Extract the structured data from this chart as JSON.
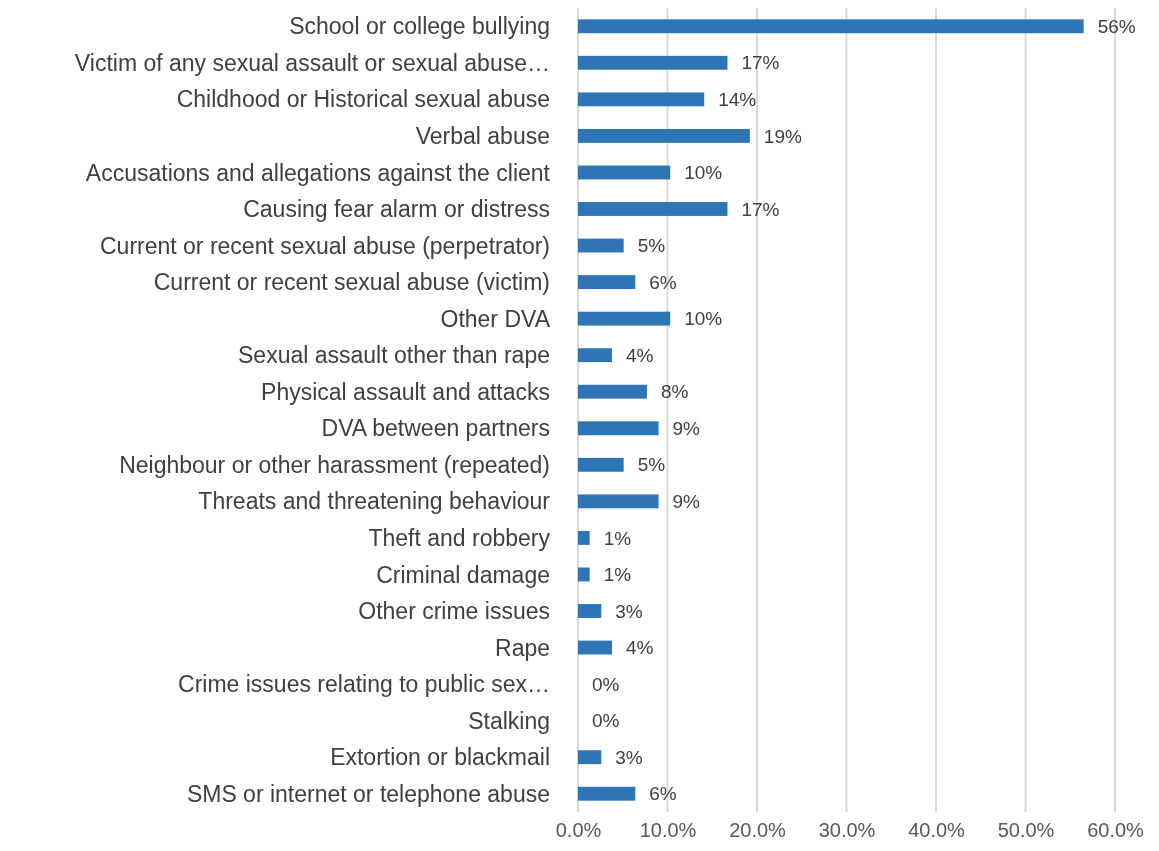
{
  "chart_data": {
    "type": "bar",
    "orientation": "horizontal",
    "categories": [
      "School or college bullying",
      "Victim of any sexual assault or sexual abuse…",
      "Childhood or Historical sexual abuse",
      "Verbal abuse",
      "Accusations and allegations against the client",
      "Causing fear alarm or distress",
      "Current or recent sexual abuse (perpetrator)",
      "Current or recent sexual abuse (victim)",
      "Other DVA",
      "Sexual assault other than rape",
      "Physical assault and attacks",
      "DVA between partners",
      "Neighbour or other harassment (repeated)",
      "Threats and threatening behaviour",
      "Theft and robbery",
      "Criminal damage",
      "Other crime issues",
      "Rape",
      "Crime issues relating to public sex…",
      "Stalking",
      "Extortion or blackmail",
      "SMS or internet or telephone abuse"
    ],
    "values": [
      56.5,
      16.7,
      14.1,
      19.2,
      10.3,
      16.7,
      5.1,
      6.4,
      10.3,
      3.8,
      7.7,
      9.0,
      5.1,
      9.0,
      1.3,
      1.3,
      2.6,
      3.8,
      0,
      0,
      2.6,
      6.4
    ],
    "value_labels": [
      "56%",
      "17%",
      "14%",
      "19%",
      "10%",
      "17%",
      "5%",
      "6%",
      "10%",
      "4%",
      "8%",
      "9%",
      "5%",
      "9%",
      "1%",
      "1%",
      "3%",
      "4%",
      "0%",
      "0%",
      "3%",
      "6%"
    ],
    "color": "#2e75b6",
    "xlim": [
      0,
      60
    ],
    "xticks": [
      {
        "value": 0,
        "label": "0.0%"
      },
      {
        "value": 10,
        "label": "10.0%"
      },
      {
        "value": 20,
        "label": "20.0%"
      },
      {
        "value": 30,
        "label": "30.0%"
      },
      {
        "value": 40,
        "label": "40.0%"
      },
      {
        "value": 50,
        "label": "50.0%"
      },
      {
        "value": 60,
        "label": "60.0%"
      }
    ],
    "grid": "x"
  }
}
